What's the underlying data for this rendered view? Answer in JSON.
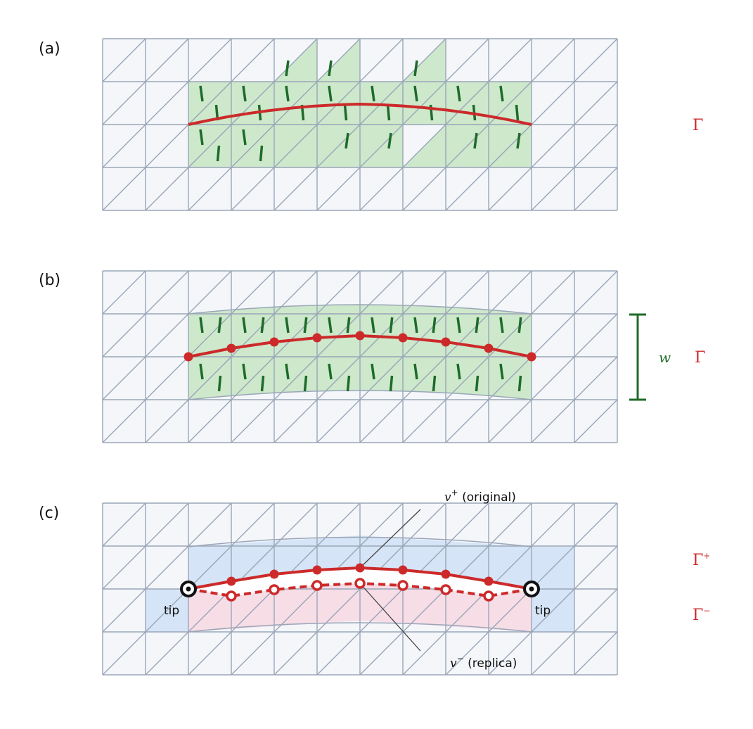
{
  "panels": [
    {
      "id": "a",
      "label": "(a)",
      "curve_label": "Γ"
    },
    {
      "id": "b",
      "label": "(b)",
      "curve_label": "Γ",
      "width_label": "w"
    },
    {
      "id": "c",
      "label": "(c)",
      "upper_label": "Γ",
      "upper_sup": "+",
      "lower_label": "Γ",
      "lower_sup": "−",
      "orig_var": "v",
      "orig_sup": "+",
      "orig_text": " (original)",
      "rep_var": "v",
      "rep_sup": "−",
      "rep_text": " (replica)",
      "tip_left": "tip",
      "tip_right": "tip"
    }
  ],
  "colors": {
    "mesh_fill": "#f4f6fa",
    "mesh_line": "#9aa6b8",
    "green_fill": "#cde8cb",
    "green_mark": "#1e6b2a",
    "crack": "#cc2a2a",
    "blue_fill": "#d6e4f7",
    "pink_fill": "#f7dde6",
    "tip": "#111111"
  }
}
